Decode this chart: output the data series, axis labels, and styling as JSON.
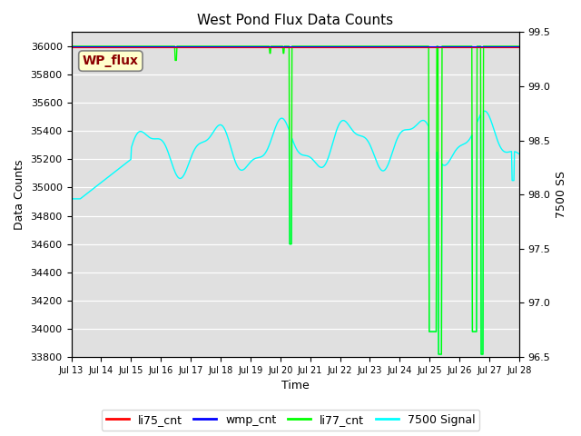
{
  "title": "West Pond Flux Data Counts",
  "xlabel": "Time",
  "ylabel_left": "Data Counts",
  "ylabel_right": "7500 SS",
  "ylim_left": [
    33800,
    36100
  ],
  "ylim_right": [
    96.5,
    99.5
  ],
  "bg_color": "#e0e0e0",
  "x_tick_labels": [
    "Jul 13",
    "Jul 14",
    "Jul 15",
    "Jul 16",
    "Jul 17",
    "Jul 18",
    "Jul 19",
    "Jul 20",
    "Jul 21",
    "Jul 22",
    "Jul 23",
    "Jul 24",
    "Jul 25",
    "Jul 26",
    "Jul 27",
    "Jul 28"
  ],
  "x_tick_positions": [
    0,
    1,
    2,
    3,
    4,
    5,
    6,
    7,
    8,
    9,
    10,
    11,
    12,
    13,
    14,
    15
  ],
  "yticks_left": [
    33800,
    34000,
    34200,
    34400,
    34600,
    34800,
    35000,
    35200,
    35400,
    35600,
    35800,
    36000
  ],
  "yticks_right": [
    96.5,
    97.0,
    97.5,
    98.0,
    98.5,
    99.0,
    99.5
  ],
  "legend_labels": [
    "li75_cnt",
    "wmp_cnt",
    "li77_cnt",
    "7500 Signal"
  ],
  "legend_colors": [
    "red",
    "blue",
    "lime",
    "cyan"
  ],
  "wp_flux_box_color": "#ffffcc",
  "wp_flux_text_color": "darkred",
  "n_days": 16,
  "n_points": 768
}
